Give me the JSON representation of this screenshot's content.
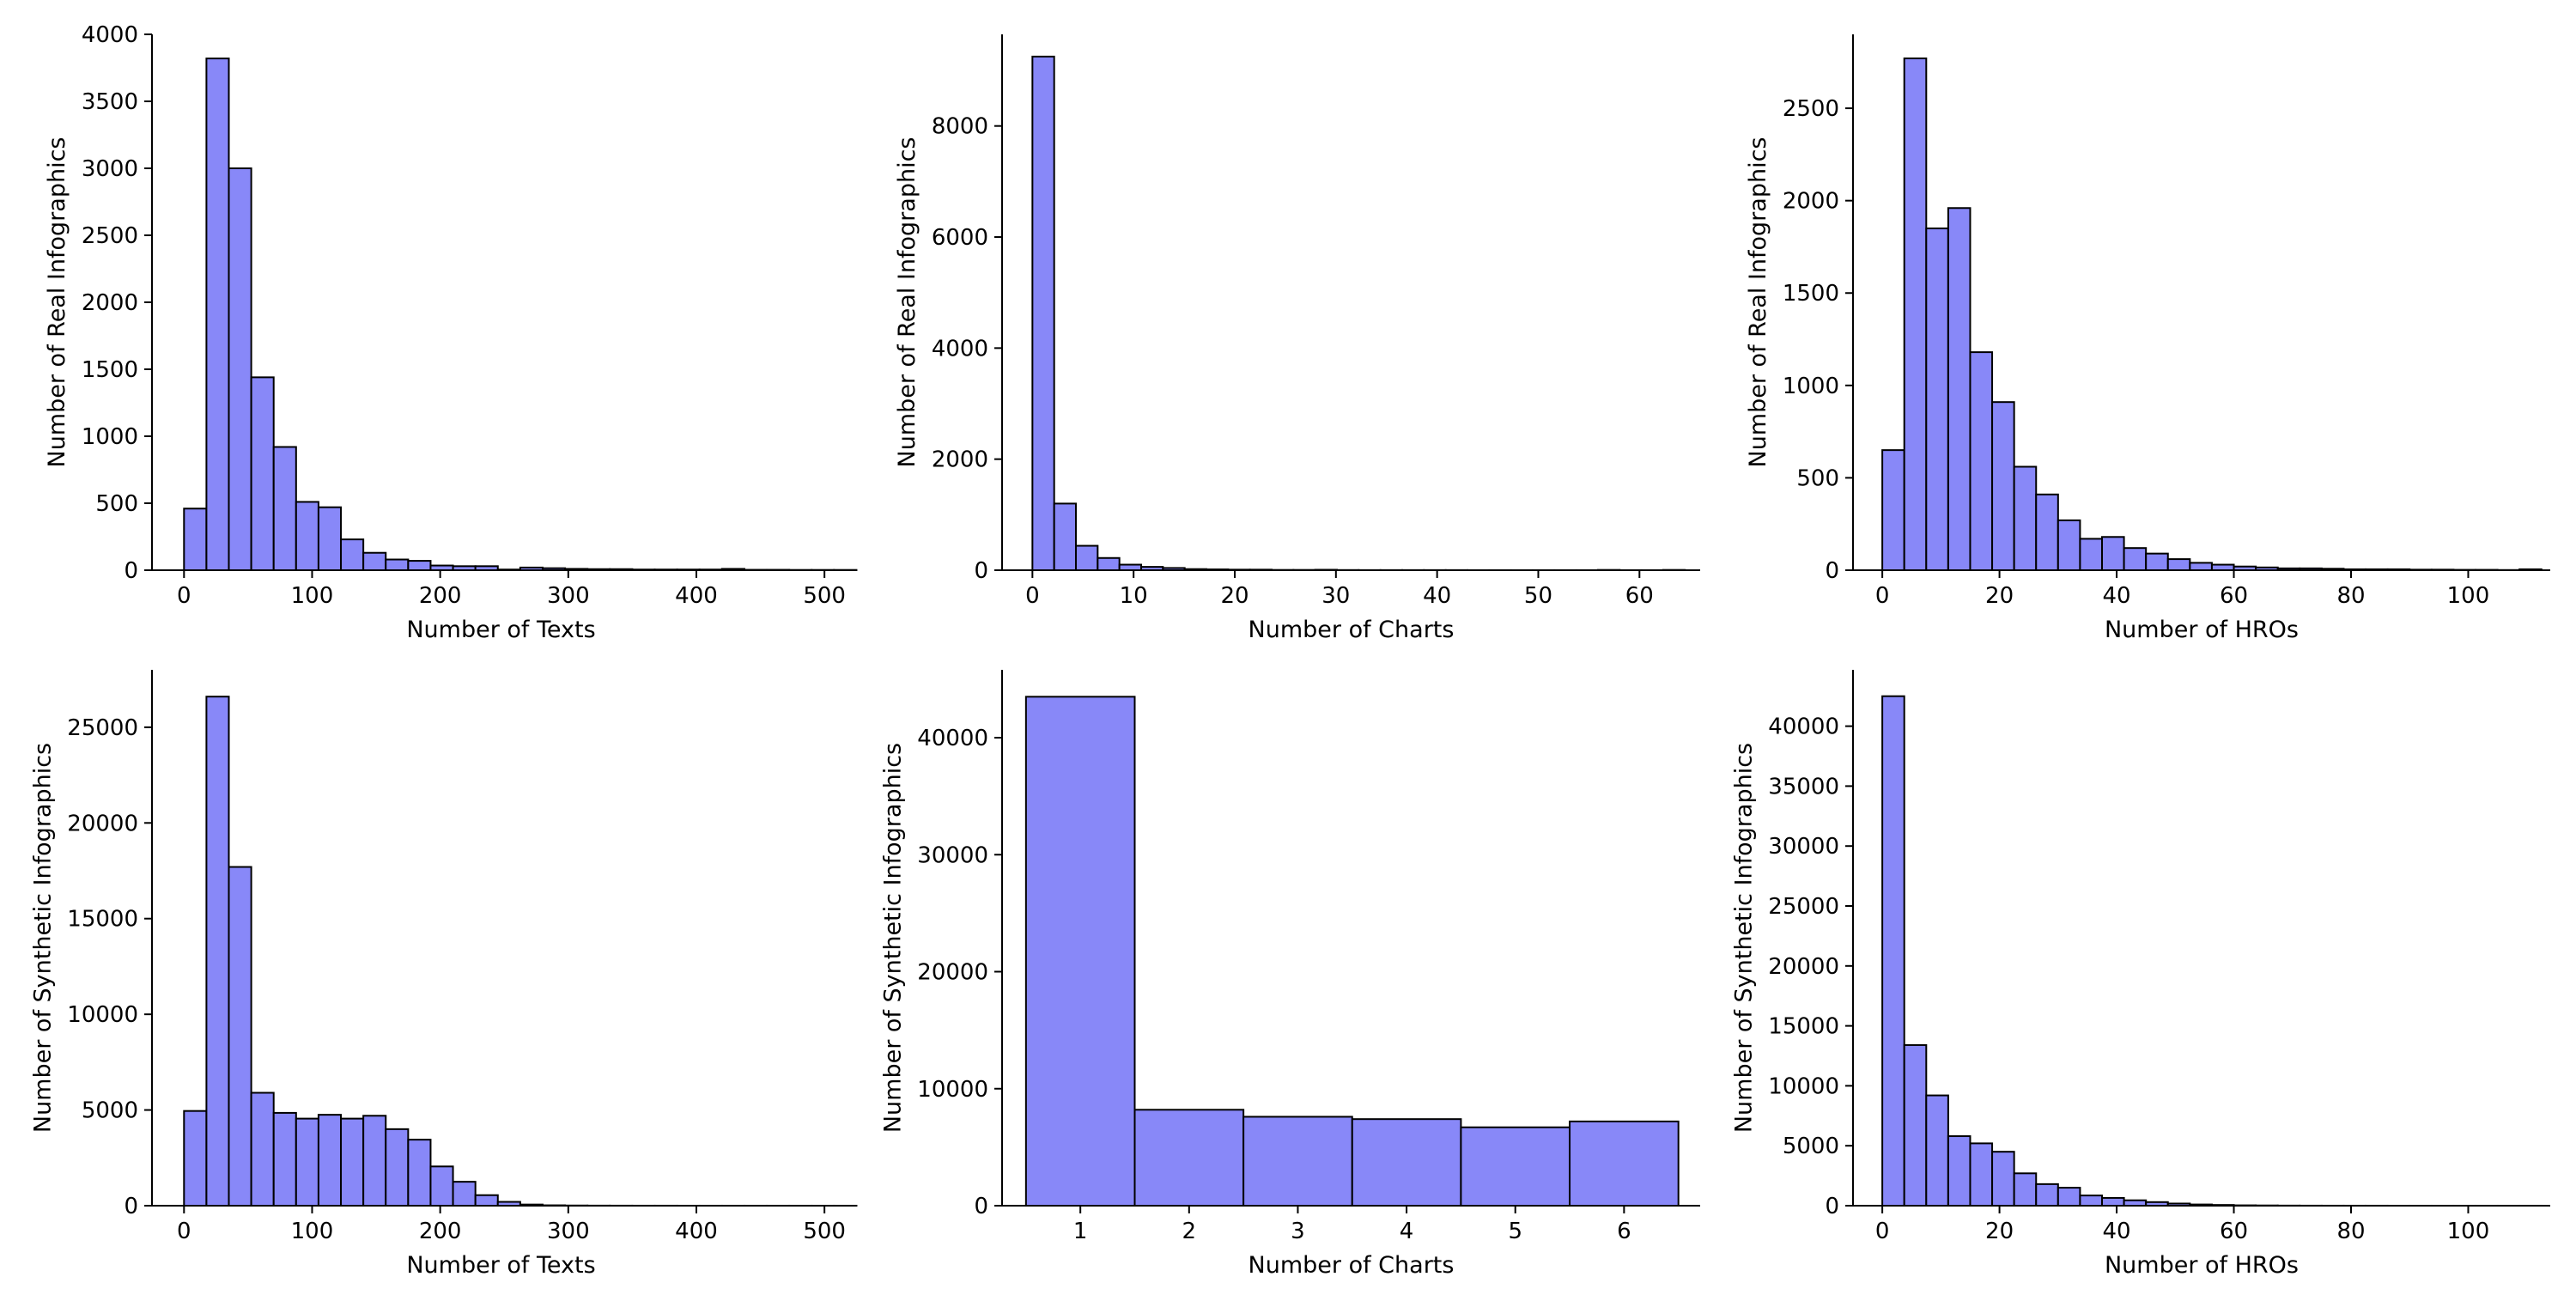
{
  "colors": {
    "bar_fill": "#8888f8",
    "bar_edge": "#000000",
    "axis": "#000000"
  },
  "chart_data": [
    {
      "type": "bar",
      "xlabel": "Number of Texts",
      "ylabel": "Number of Real Infographics",
      "xlim": [
        -25,
        520
      ],
      "ylim": [
        0,
        4000
      ],
      "xticks": [
        0,
        100,
        200,
        300,
        400,
        500
      ],
      "yticks": [
        0,
        500,
        1000,
        1500,
        2000,
        2500,
        3000,
        3500,
        4000
      ],
      "bin_start": 0,
      "bin_width": 17.5,
      "values": [
        460,
        3820,
        3000,
        1440,
        920,
        510,
        470,
        230,
        130,
        80,
        70,
        35,
        30,
        30,
        5,
        20,
        15,
        10,
        8,
        8,
        5,
        5,
        5,
        5,
        10,
        3,
        3,
        2,
        2,
        2
      ]
    },
    {
      "type": "bar",
      "xlabel": "Number of Charts",
      "ylabel": "Number of Real Infographics",
      "xlim": [
        -3,
        66
      ],
      "ylim": [
        0,
        9650
      ],
      "xticks": [
        0,
        10,
        20,
        30,
        40,
        50,
        60
      ],
      "yticks": [
        0,
        2000,
        4000,
        6000,
        8000
      ],
      "bin_start": 0,
      "bin_width": 2.15,
      "values": [
        9250,
        1200,
        440,
        220,
        100,
        60,
        40,
        20,
        15,
        10,
        10,
        5,
        5,
        8,
        3,
        2,
        2,
        2,
        2,
        2,
        1,
        1,
        1,
        1,
        1,
        1,
        5,
        1,
        1,
        5
      ]
    },
    {
      "type": "bar",
      "xlabel": "Number of HROs",
      "ylabel": "Number of Real Infographics",
      "xlim": [
        -5,
        114
      ],
      "ylim": [
        0,
        2900
      ],
      "xticks": [
        0,
        20,
        40,
        60,
        80,
        100
      ],
      "yticks": [
        0,
        500,
        1000,
        1500,
        2000,
        2500
      ],
      "bin_start": 0,
      "bin_width": 3.75,
      "values": [
        650,
        2770,
        1850,
        1960,
        1180,
        910,
        560,
        410,
        270,
        170,
        180,
        120,
        90,
        60,
        40,
        30,
        20,
        15,
        10,
        10,
        8,
        5,
        5,
        5,
        3,
        3,
        2,
        2,
        1,
        5
      ]
    },
    {
      "type": "bar",
      "xlabel": "Number of Texts",
      "ylabel": "Number of Synthetic Infographics",
      "xlim": [
        -25,
        520
      ],
      "ylim": [
        0,
        28000
      ],
      "xticks": [
        0,
        100,
        200,
        300,
        400,
        500
      ],
      "yticks": [
        0,
        5000,
        10000,
        15000,
        20000,
        25000
      ],
      "bin_start": 0,
      "bin_width": 17.5,
      "values": [
        4950,
        26600,
        17700,
        5900,
        4850,
        4550,
        4750,
        4550,
        4700,
        4000,
        3450,
        2050,
        1250,
        550,
        200,
        60,
        20,
        10,
        5,
        3,
        2,
        2,
        1,
        1,
        1,
        1,
        1,
        1,
        1,
        1
      ]
    },
    {
      "type": "bar",
      "xlabel": "Number of Charts",
      "ylabel": "Number of Synthetic Infographics",
      "xlim": [
        0.28,
        6.7
      ],
      "ylim": [
        0,
        45800
      ],
      "xticks": [
        1,
        2,
        3,
        4,
        5,
        6
      ],
      "yticks": [
        0,
        10000,
        20000,
        30000,
        40000
      ],
      "bin_start": 0.5,
      "bin_width": 1,
      "values": [
        43500,
        8200,
        7600,
        7400,
        6700,
        7200
      ]
    },
    {
      "type": "bar",
      "xlabel": "Number of HROs",
      "ylabel": "Number of Synthetic Infographics",
      "xlim": [
        -5,
        114
      ],
      "ylim": [
        0,
        44700
      ],
      "xticks": [
        0,
        20,
        40,
        60,
        80,
        100
      ],
      "yticks": [
        0,
        5000,
        10000,
        15000,
        20000,
        25000,
        30000,
        35000,
        40000
      ],
      "bin_start": 0,
      "bin_width": 3.75,
      "values": [
        42500,
        13400,
        9200,
        5800,
        5200,
        4500,
        2700,
        1800,
        1500,
        850,
        650,
        450,
        300,
        180,
        100,
        60,
        30,
        20,
        10,
        5,
        3,
        2,
        2,
        1,
        1,
        1,
        1,
        1,
        1,
        1
      ]
    }
  ]
}
